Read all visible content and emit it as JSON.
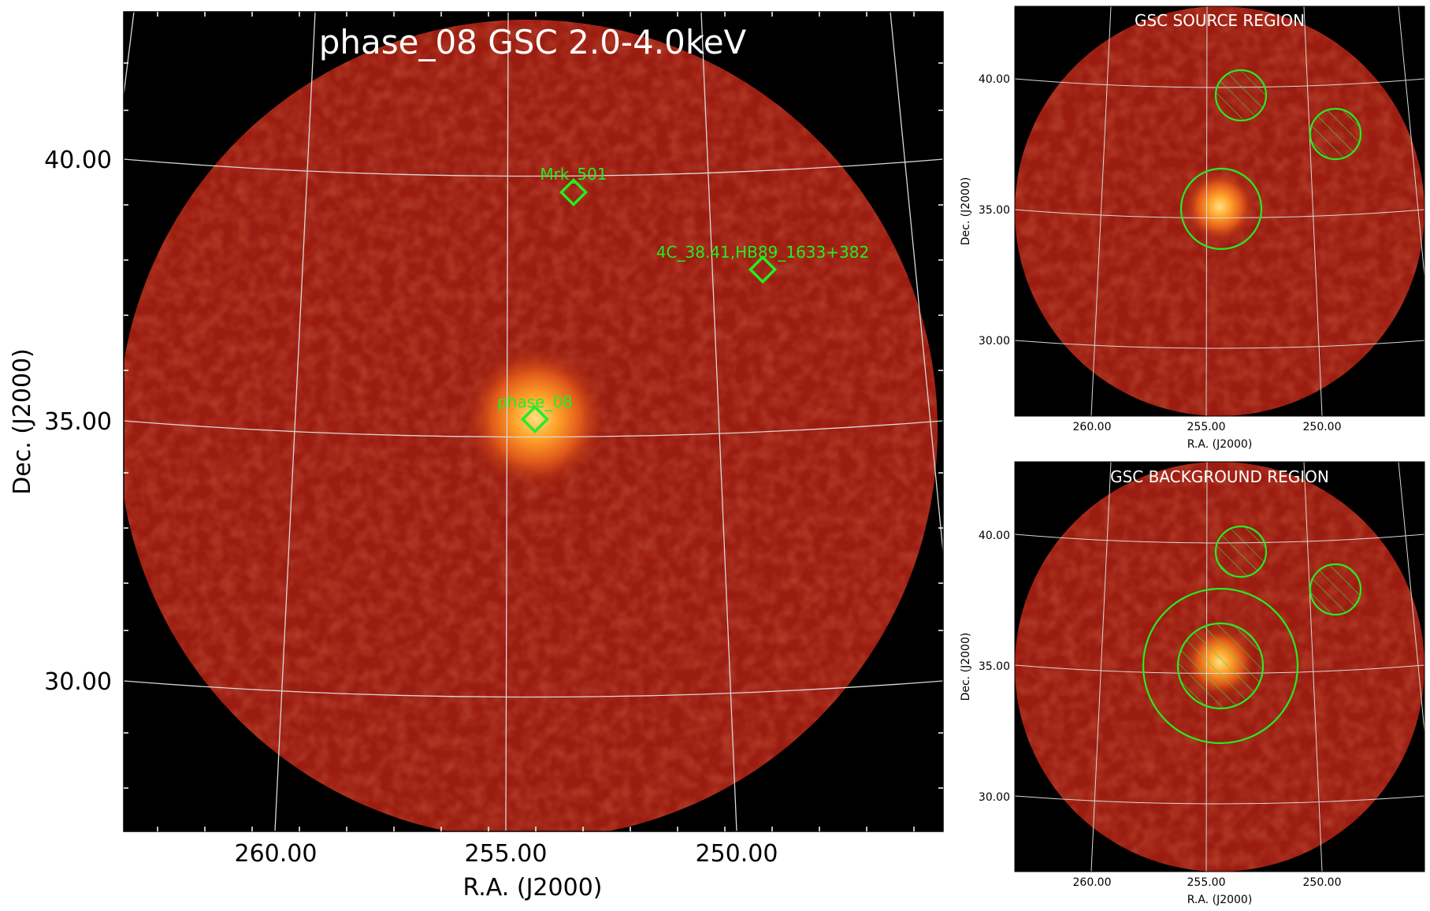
{
  "main_panel": {
    "title": "phase_08 GSC 2.0-4.0keV",
    "xlabel": "R.A. (J2000)",
    "ylabel": "Dec. (J2000)",
    "x_ticks": [
      "260.00",
      "255.00",
      "250.00"
    ],
    "y_ticks": [
      "40.00",
      "35.00",
      "30.00"
    ],
    "sources": [
      {
        "label": "Mrk_501",
        "ra": 253.47,
        "dec": 39.76
      },
      {
        "label": "4C_38.41,HB89_1633+382",
        "ra": 248.81,
        "dec": 38.13
      },
      {
        "label": "phase_08",
        "ra": 254.2,
        "dec": 35.3
      }
    ]
  },
  "source_panel": {
    "title": "GSC SOURCE REGION",
    "xlabel": "R.A. (J2000)",
    "ylabel": "Dec. (J2000)",
    "x_ticks": [
      "260.00",
      "255.00",
      "250.00"
    ],
    "y_ticks": [
      "40.00",
      "35.00",
      "30.00"
    ]
  },
  "background_panel": {
    "title": "GSC BACKGROUND REGION",
    "xlabel": "R.A. (J2000)",
    "ylabel": "Dec. (J2000)",
    "x_ticks": [
      "260.00",
      "255.00",
      "250.00"
    ],
    "y_ticks": [
      "40.00",
      "35.00",
      "30.00"
    ]
  },
  "colors": {
    "map_red": "#9b1c10",
    "source_glow": "#ffb030",
    "region_green": "#22ee22",
    "grid": "#d8d8d8",
    "sky_background": "#000000"
  }
}
